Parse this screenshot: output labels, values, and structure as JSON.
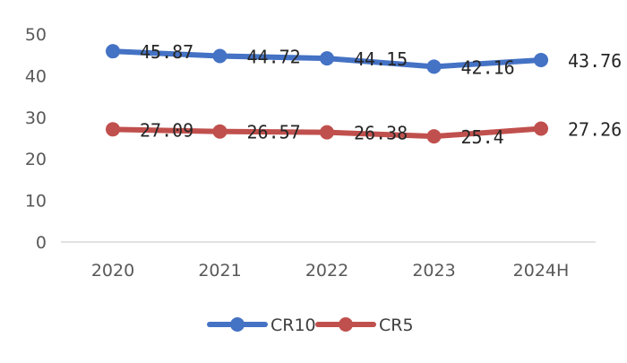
{
  "chart_data": {
    "type": "line",
    "categories": [
      "2020",
      "2021",
      "2022",
      "2023",
      "2024H"
    ],
    "series": [
      {
        "name": "CR10",
        "values": [
          45.87,
          44.72,
          44.15,
          42.16,
          43.76
        ],
        "labels": [
          "45.87",
          "44.72",
          "44.15",
          "42.16",
          "43.76"
        ],
        "color": "#4472C4"
      },
      {
        "name": "CR5",
        "values": [
          27.09,
          26.57,
          26.38,
          25.4,
          27.26
        ],
        "labels": [
          "27.09",
          "26.57",
          "26.38",
          "25.4",
          "27.26"
        ],
        "color": "#C0504D"
      }
    ],
    "ylim": [
      0,
      50
    ],
    "yticks": [
      "0",
      "10",
      "20",
      "30",
      "40",
      "50"
    ],
    "grid": false,
    "legend_position": "bottom",
    "title": "",
    "xlabel": "",
    "ylabel": ""
  }
}
